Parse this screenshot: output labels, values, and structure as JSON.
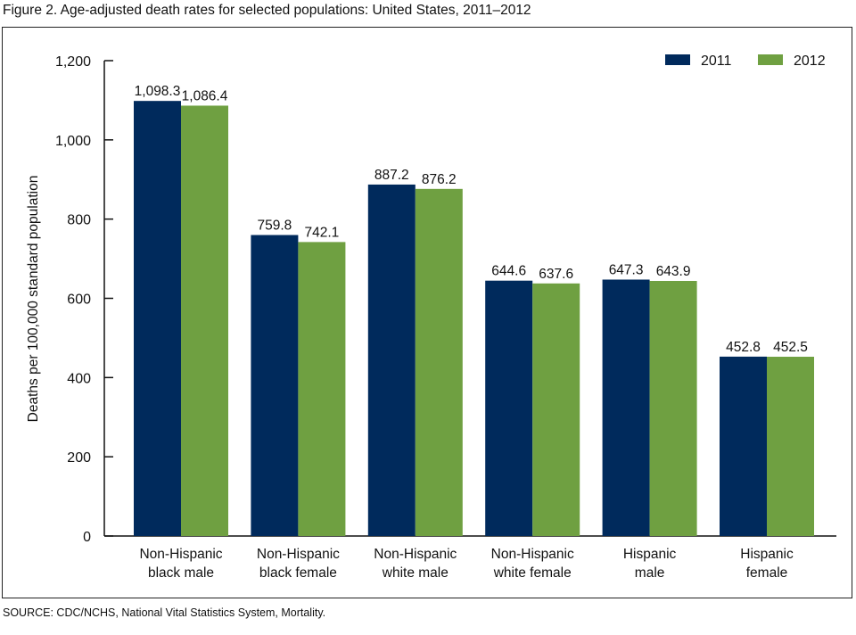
{
  "title": "Figure 2. Age-adjusted death rates for selected populations: United States, 2011–2012",
  "source": "SOURCE: CDC/NCHS, National Vital Statistics System, Mortality.",
  "chart_data": {
    "type": "bar",
    "title": "Figure 2. Age-adjusted death rates for selected populations: United States, 2011–2012",
    "ylabel": "Deaths per 100,000 standard population",
    "xlabel": "",
    "ylim": [
      0,
      1200
    ],
    "yticks": [
      0,
      200,
      400,
      600,
      800,
      1000,
      1200
    ],
    "ytick_labels": [
      "0",
      "200",
      "400",
      "600",
      "800",
      "1,000",
      "1,200"
    ],
    "grid": false,
    "legend": "top-right",
    "categories": [
      [
        "Non-Hispanic",
        "black male"
      ],
      [
        "Non-Hispanic",
        "black female"
      ],
      [
        "Non-Hispanic",
        "white male"
      ],
      [
        "Non-Hispanic",
        "white female"
      ],
      [
        "Hispanic",
        "male"
      ],
      [
        "Hispanic",
        "female"
      ]
    ],
    "series": [
      {
        "name": "2011",
        "color": "#002a5c",
        "values": [
          1098.3,
          759.8,
          887.2,
          644.6,
          647.3,
          452.8
        ],
        "labels": [
          "1,098.3",
          "759.8",
          "887.2",
          "644.6",
          "647.3",
          "452.8"
        ]
      },
      {
        "name": "2012",
        "color": "#6fa041",
        "values": [
          1086.4,
          742.1,
          876.2,
          637.6,
          643.9,
          452.5
        ],
        "labels": [
          "1,086.4",
          "742.1",
          "876.2",
          "637.6",
          "643.9",
          "452.5"
        ]
      }
    ]
  }
}
